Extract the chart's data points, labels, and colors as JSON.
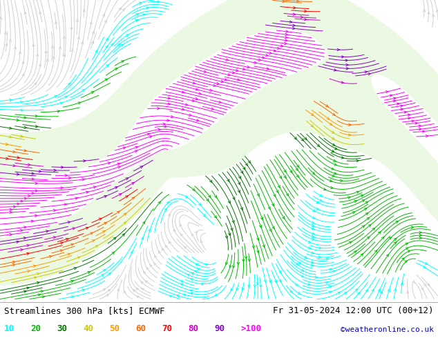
{
  "title_left": "Streamlines 300 hPa [kts] ECMWF",
  "title_right": "Fr 31-05-2024 12:00 UTC (00+12)",
  "credit": "©weatheronline.co.uk",
  "legend_values": [
    "10",
    "20",
    "30",
    "40",
    "50",
    "60",
    "70",
    "80",
    "90",
    ">100"
  ],
  "legend_colors": [
    "#00ffff",
    "#00bb00",
    "#007700",
    "#cccc00",
    "#ff9900",
    "#ff6600",
    "#ff0000",
    "#cc00cc",
    "#8800cc",
    "#ff00ff"
  ],
  "bg_color": "#ffffff",
  "font_color": "#000000",
  "credit_color": "#0000cc",
  "title_fontsize": 9,
  "legend_fontsize": 9,
  "fig_width": 6.34,
  "fig_height": 4.9,
  "dpi": 100,
  "map_bg": "#e8e8e8",
  "speed_levels": [
    0,
    10,
    20,
    30,
    40,
    50,
    60,
    70,
    80,
    90,
    100,
    300
  ],
  "stream_colors": [
    "#d0d0d0",
    "#00ffff",
    "#00bb00",
    "#007700",
    "#cccc00",
    "#ff9900",
    "#ff6600",
    "#ff0000",
    "#cc00cc",
    "#8800cc",
    "#ff00ff"
  ]
}
